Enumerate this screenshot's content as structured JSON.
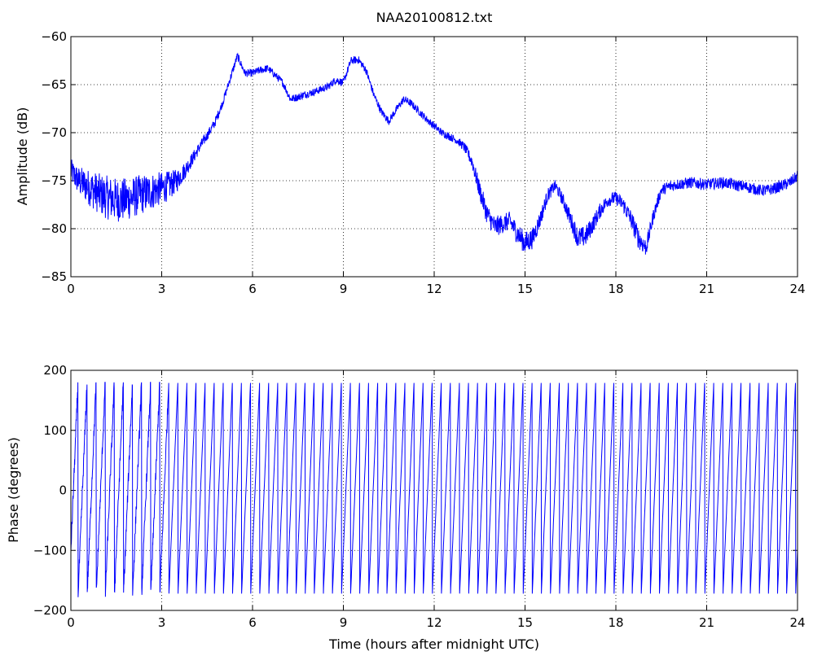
{
  "figure": {
    "title": "NAA20100812.txt",
    "line_color": "#0000ff"
  },
  "chart_data": [
    {
      "type": "line",
      "title": "NAA20100812.txt",
      "xlabel": "",
      "ylabel": "Amplitude (dB)",
      "xlim": [
        0,
        24
      ],
      "ylim": [
        -85,
        -60
      ],
      "xticks": [
        0,
        3,
        6,
        9,
        12,
        15,
        18,
        21,
        24
      ],
      "yticks": [
        -85,
        -80,
        -75,
        -70,
        -65,
        -60
      ],
      "xtick_labels": [
        "0",
        "3",
        "6",
        "9",
        "12",
        "15",
        "18",
        "21",
        "24"
      ],
      "ytick_labels": [
        "−85",
        "−80",
        "−75",
        "−70",
        "−65",
        "−60"
      ],
      "grid": true,
      "color": "#0000ff",
      "series": [
        {
          "x": [
            0,
            0.25,
            0.5,
            0.75,
            1.0,
            1.25,
            1.5,
            1.75,
            2.0,
            2.25,
            2.5,
            2.75,
            3.0,
            3.25,
            3.5,
            3.75,
            4.0,
            4.25,
            4.5,
            4.75,
            5.0,
            5.25,
            5.5,
            5.75,
            6.0,
            6.25,
            6.5,
            6.75,
            7.0,
            7.25,
            7.5,
            7.75,
            8.0,
            8.25,
            8.5,
            8.75,
            9.0,
            9.25,
            9.5,
            9.75,
            10.0,
            10.25,
            10.5,
            10.75,
            11.0,
            11.25,
            11.5,
            11.75,
            12.0,
            12.25,
            12.5,
            12.75,
            13.0,
            13.25,
            13.5,
            13.75,
            14.0,
            14.25,
            14.5,
            14.75,
            15.0,
            15.25,
            15.5,
            15.75,
            16.0,
            16.25,
            16.5,
            16.75,
            17.0,
            17.25,
            17.5,
            17.75,
            18.0,
            18.25,
            18.5,
            18.75,
            19.0,
            19.25,
            19.5,
            19.75,
            20.0,
            20.25,
            20.5,
            20.75,
            21.0,
            21.25,
            21.5,
            21.75,
            22.0,
            22.25,
            22.5,
            22.75,
            23.0,
            23.25,
            23.5,
            23.75,
            24.0
          ],
          "values": [
            -74.0,
            -75.0,
            -75.5,
            -76.0,
            -76.5,
            -76.8,
            -77.0,
            -77.0,
            -76.8,
            -76.5,
            -76.3,
            -76.0,
            -75.8,
            -75.5,
            -75.0,
            -74.0,
            -72.8,
            -71.5,
            -70.3,
            -69.0,
            -67.0,
            -64.5,
            -62.0,
            -63.8,
            -63.8,
            -63.5,
            -63.3,
            -64.0,
            -64.8,
            -66.5,
            -66.3,
            -66.0,
            -65.8,
            -65.5,
            -65.2,
            -64.5,
            -64.8,
            -62.5,
            -62.4,
            -63.5,
            -66.0,
            -67.8,
            -68.8,
            -67.6,
            -66.5,
            -67.0,
            -67.8,
            -68.6,
            -69.3,
            -70.0,
            -70.4,
            -70.8,
            -71.5,
            -73.0,
            -76.0,
            -78.5,
            -79.8,
            -79.5,
            -79.2,
            -80.5,
            -81.5,
            -81.0,
            -79.0,
            -76.5,
            -75.5,
            -77.0,
            -79.0,
            -81.0,
            -80.8,
            -79.5,
            -78.0,
            -77.0,
            -76.8,
            -77.5,
            -79.0,
            -81.0,
            -82.0,
            -78.5,
            -76.0,
            -75.6,
            -75.4,
            -75.3,
            -75.2,
            -75.3,
            -75.4,
            -75.3,
            -75.2,
            -75.3,
            -75.5,
            -75.6,
            -75.8,
            -76.0,
            -76.0,
            -75.8,
            -75.5,
            -75.2,
            -74.5
          ],
          "noise_amplitude": [
            1.3,
            1.5,
            1.8,
            2.0,
            2.2,
            2.3,
            2.3,
            2.3,
            2.2,
            2.1,
            2.0,
            1.9,
            1.7,
            1.5,
            1.2,
            0.9,
            0.7,
            0.6,
            0.5,
            0.5,
            0.4,
            0.4,
            0.4,
            0.4,
            0.4,
            0.4,
            0.4,
            0.4,
            0.4,
            0.4,
            0.4,
            0.4,
            0.4,
            0.4,
            0.4,
            0.4,
            0.4,
            0.4,
            0.4,
            0.4,
            0.4,
            0.4,
            0.4,
            0.4,
            0.4,
            0.4,
            0.4,
            0.4,
            0.4,
            0.4,
            0.4,
            0.4,
            0.5,
            0.7,
            1.0,
            1.1,
            1.1,
            1.0,
            1.0,
            1.1,
            1.2,
            1.1,
            0.9,
            0.7,
            0.6,
            0.7,
            0.9,
            1.1,
            1.1,
            0.9,
            0.8,
            0.7,
            0.7,
            0.8,
            1.0,
            1.1,
            0.9,
            0.7,
            0.6,
            0.6,
            0.6,
            0.6,
            0.6,
            0.6,
            0.6,
            0.6,
            0.6,
            0.6,
            0.6,
            0.6,
            0.6,
            0.6,
            0.6,
            0.6,
            0.6,
            0.6,
            0.6
          ]
        }
      ]
    },
    {
      "type": "line",
      "title": "",
      "xlabel": "Time (hours after midnight UTC)",
      "ylabel": "Phase (degrees)",
      "xlim": [
        0,
        24
      ],
      "ylim": [
        -200,
        200
      ],
      "xticks": [
        0,
        3,
        6,
        9,
        12,
        15,
        18,
        21,
        24
      ],
      "yticks": [
        -200,
        -100,
        0,
        100,
        200
      ],
      "xtick_labels": [
        "0",
        "3",
        "6",
        "9",
        "12",
        "15",
        "18",
        "21",
        "24"
      ],
      "ytick_labels": [
        "−200",
        "−100",
        "0",
        "100",
        "200"
      ],
      "grid": true,
      "color": "#0000ff",
      "series": [
        {
          "description_free": true,
          "wrap_range": [
            -180,
            180
          ],
          "period_hours": 0.3,
          "start_phase": -100
        }
      ]
    }
  ]
}
